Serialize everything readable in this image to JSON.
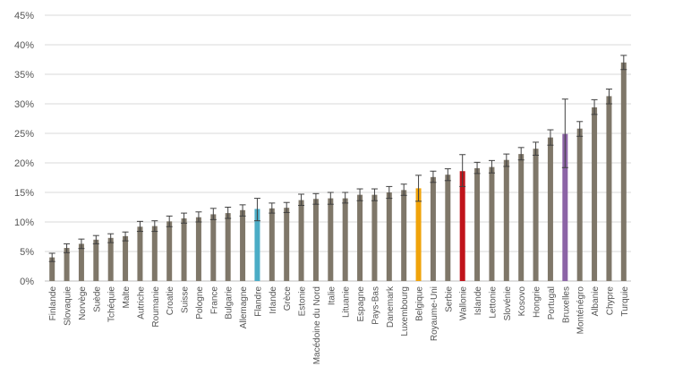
{
  "chart_data": {
    "type": "bar",
    "title": "",
    "xlabel": "",
    "ylabel": "",
    "ylim": [
      0,
      45
    ],
    "grid": true,
    "legend": "none",
    "y_ticks": [
      "0%",
      "5%",
      "10%",
      "15%",
      "20%",
      "25%",
      "30%",
      "35%",
      "40%",
      "45%"
    ],
    "y_tick_values": [
      0,
      5,
      10,
      15,
      20,
      25,
      30,
      35,
      40,
      45
    ],
    "categories": [
      "Finlande",
      "Slovaquie",
      "Norvège",
      "Suède",
      "Tchéquie",
      "Malte",
      "Autriche",
      "Roumanie",
      "Croatie",
      "Suisse",
      "Pologne",
      "France",
      "Bulgarie",
      "Allemagne",
      "Flandre",
      "Irlande",
      "Grèce",
      "Estonie",
      "Macédoine du Nord",
      "Italie",
      "Lituanie",
      "Espagne",
      "Pays-Bas",
      "Danemark",
      "Luxembourg",
      "Belgique",
      "Royaume-Uni",
      "Serbie",
      "Wallonie",
      "Islande",
      "Lettonie",
      "Slovénie",
      "Kosovo",
      "Hongrie",
      "Portugal",
      "Bruxelles",
      "Monténégro",
      "Albanie",
      "Chypre",
      "Turquie"
    ],
    "values": [
      4.0,
      5.6,
      6.3,
      7.0,
      7.3,
      7.6,
      9.2,
      9.3,
      10.1,
      10.6,
      10.8,
      11.3,
      11.5,
      12.0,
      12.2,
      12.3,
      12.4,
      13.7,
      13.9,
      14.0,
      14.0,
      14.6,
      14.6,
      15.0,
      15.4,
      15.7,
      17.6,
      18.0,
      18.6,
      19.1,
      19.3,
      20.5,
      21.5,
      22.4,
      24.3,
      24.9,
      25.8,
      29.4,
      31.3,
      37.0
    ],
    "error_low": [
      3.3,
      4.8,
      5.5,
      6.3,
      6.5,
      6.8,
      8.4,
      8.4,
      9.2,
      9.8,
      10.0,
      10.4,
      10.6,
      11.0,
      10.2,
      11.5,
      11.6,
      12.8,
      13.0,
      13.0,
      13.2,
      13.6,
      13.6,
      14.0,
      14.5,
      13.5,
      16.7,
      17.0,
      16.0,
      18.2,
      18.3,
      19.4,
      20.5,
      21.3,
      23.0,
      19.2,
      24.5,
      28.2,
      30.0,
      35.8
    ],
    "error_high": [
      4.7,
      6.3,
      7.1,
      7.7,
      8.0,
      8.3,
      10.1,
      10.2,
      11.0,
      11.5,
      11.7,
      12.3,
      12.5,
      12.9,
      14.0,
      13.2,
      13.3,
      14.7,
      14.8,
      15.0,
      15.0,
      15.6,
      15.6,
      16.0,
      16.4,
      17.9,
      18.6,
      19.0,
      21.4,
      20.1,
      20.4,
      21.5,
      22.6,
      23.5,
      25.6,
      30.8,
      27.0,
      30.7,
      32.5,
      38.2
    ],
    "colors": {
      "default": "#7f7769",
      "Flandre": "#4bacc6",
      "Belgique": "#f0a30a",
      "Wallonie": "#c0141b",
      "Bruxelles": "#8c64a6",
      "grid": "#d9d9d9",
      "axis": "#bfbfbf",
      "error": "#404040"
    }
  }
}
